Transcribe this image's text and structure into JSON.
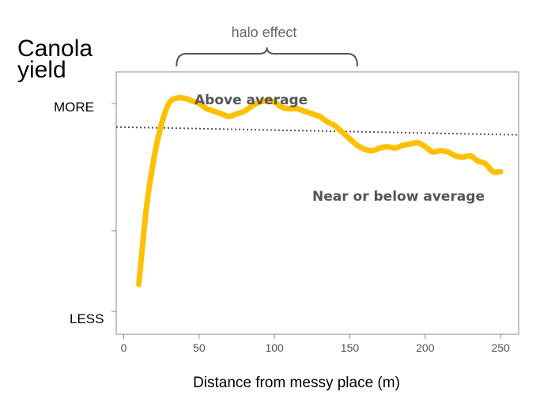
{
  "chart_data": {
    "type": "line",
    "ylabel": "Canola yield",
    "xlabel": "Distance from messy place (m)",
    "xlim": [
      -5,
      262
    ],
    "ylim": [
      0,
      100
    ],
    "x_ticks": [
      "0",
      "50",
      "100",
      "150",
      "200",
      "250"
    ],
    "y_ticks_text": {
      "high": "MORE",
      "low": "LESS"
    },
    "grid": false,
    "legend": "none",
    "series": [
      {
        "color": "#FFC000",
        "x": [
          10,
          15,
          20,
          25,
          30,
          35,
          40,
          45,
          50,
          55,
          60,
          65,
          70,
          75,
          80,
          85,
          90,
          95,
          100,
          105,
          110,
          115,
          120,
          125,
          130,
          135,
          140,
          145,
          150,
          155,
          160,
          165,
          170,
          175,
          180,
          185,
          190,
          195,
          200,
          205,
          210,
          215,
          220,
          225,
          230,
          235,
          240,
          245,
          250
        ],
        "values": [
          19,
          48,
          67,
          80,
          88,
          90,
          90,
          89,
          88,
          86,
          85,
          84,
          83,
          84,
          85,
          87,
          88.5,
          89,
          88.5,
          86.5,
          86,
          86,
          85,
          84,
          83,
          81,
          79.5,
          77,
          74.5,
          72,
          70.5,
          70,
          71,
          71.5,
          71,
          72,
          72.5,
          73,
          71.5,
          69.5,
          70,
          69.5,
          68,
          67.5,
          68,
          66,
          65,
          62,
          62
        ]
      }
    ],
    "reference_line": {
      "style": "dotted",
      "y_start": 79,
      "y_end": 76
    },
    "annotations": {
      "above": "Above average",
      "below": "Near or below average",
      "halo": "halo effect",
      "halo_range": [
        35,
        155
      ]
    }
  }
}
